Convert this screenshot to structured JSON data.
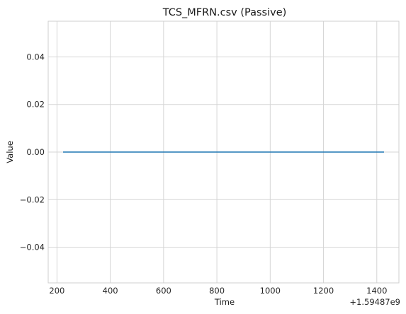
{
  "chart_data": {
    "type": "line",
    "title": "TCS_MFRN.csv (Passive)",
    "xlabel": "Time",
    "ylabel": "Value",
    "x_offset_label": "+1.59487e9",
    "x_ticks": [
      200,
      400,
      600,
      800,
      1000,
      1200,
      1400
    ],
    "x_tick_labels": [
      "200",
      "400",
      "600",
      "800",
      "1000",
      "1200",
      "1400"
    ],
    "y_ticks": [
      -0.04,
      -0.02,
      0.0,
      0.02,
      0.04
    ],
    "y_tick_labels": [
      "−0.04",
      "−0.02",
      "0.00",
      "0.02",
      "0.04"
    ],
    "xlim": [
      167,
      1483
    ],
    "ylim": [
      -0.055,
      0.055
    ],
    "grid": true,
    "series": [
      {
        "color": "#1f77b4",
        "x": [
          225,
          1425
        ],
        "y": [
          0.0,
          0.0
        ]
      }
    ]
  }
}
